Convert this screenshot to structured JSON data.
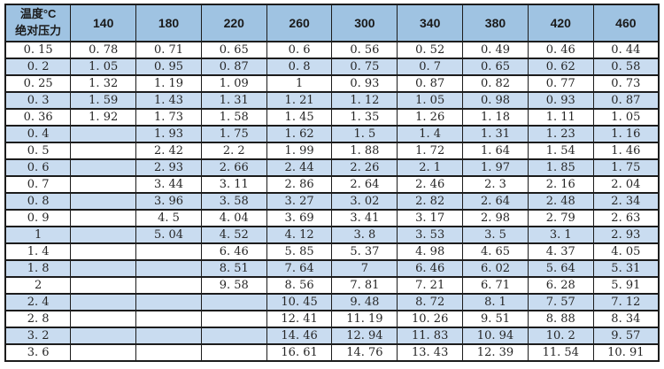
{
  "colors": {
    "header_bg": "#9fc3e2",
    "stripe_bg": "#c9dcf0",
    "row_bg": "#ffffff",
    "border": "#1c1c1c",
    "text": "#262626"
  },
  "chart_data": {
    "type": "table",
    "title": "",
    "corner_header": {
      "line1": "温度°C",
      "line2": "绝对压力"
    },
    "column_axis_label": "温度°C",
    "row_axis_label": "绝对压力",
    "columns": [
      "140",
      "180",
      "220",
      "260",
      "300",
      "340",
      "380",
      "420",
      "460"
    ],
    "rows": [
      {
        "label": "0.15",
        "values": [
          "0.78",
          "0.71",
          "0.65",
          "0.6",
          "0.56",
          "0.52",
          "0.49",
          "0.46",
          "0.44"
        ]
      },
      {
        "label": "0.2",
        "values": [
          "1.05",
          "0.95",
          "0.87",
          "0.8",
          "0.75",
          "0.7",
          "0.65",
          "0.62",
          "0.58"
        ]
      },
      {
        "label": "0.25",
        "values": [
          "1.32",
          "1.19",
          "1.09",
          "1",
          "0.93",
          "0.87",
          "0.82",
          "0.77",
          "0.73"
        ]
      },
      {
        "label": "0.3",
        "values": [
          "1.59",
          "1.43",
          "1.31",
          "1.21",
          "1.12",
          "1.05",
          "0.98",
          "0.93",
          "0.87"
        ]
      },
      {
        "label": "0.36",
        "values": [
          "1.92",
          "1.73",
          "1.58",
          "1.45",
          "1.35",
          "1.26",
          "1.18",
          "1.11",
          "1.05"
        ]
      },
      {
        "label": "0.4",
        "values": [
          "",
          "1.93",
          "1.75",
          "1.62",
          "1.5",
          "1.4",
          "1.31",
          "1.23",
          "1.16"
        ]
      },
      {
        "label": "0.5",
        "values": [
          "",
          "2.42",
          "2.2",
          "1.99",
          "1.88",
          "1.72",
          "1.64",
          "1.54",
          "1.46"
        ]
      },
      {
        "label": "0.6",
        "values": [
          "",
          "2.93",
          "2.66",
          "2.44",
          "2.26",
          "2.1",
          "1.97",
          "1.85",
          "1.75"
        ]
      },
      {
        "label": "0.7",
        "values": [
          "",
          "3.44",
          "3.11",
          "2.86",
          "2.64",
          "2.46",
          "2.3",
          "2.16",
          "2.04"
        ]
      },
      {
        "label": "0.8",
        "values": [
          "",
          "3.96",
          "3.58",
          "3.27",
          "3.02",
          "2.82",
          "2.64",
          "2.48",
          "2.34"
        ]
      },
      {
        "label": "0.9",
        "values": [
          "",
          "4.5",
          "4.04",
          "3.69",
          "3.41",
          "3.17",
          "2.98",
          "2.79",
          "2.63"
        ]
      },
      {
        "label": "1",
        "values": [
          "",
          "5.04",
          "4.52",
          "4.12",
          "3.8",
          "3.53",
          "3.5",
          "3.1",
          "2.93"
        ]
      },
      {
        "label": "1.4",
        "values": [
          "",
          "",
          "6.46",
          "5.85",
          "5.37",
          "4.98",
          "4.65",
          "4.37",
          "4.05"
        ]
      },
      {
        "label": "1.8",
        "values": [
          "",
          "",
          "8.51",
          "7.64",
          "7",
          "6.46",
          "6.02",
          "5.64",
          "5.31"
        ]
      },
      {
        "label": "2",
        "values": [
          "",
          "",
          "9.58",
          "8.56",
          "7.81",
          "7.21",
          "6.71",
          "6.28",
          "5.91"
        ]
      },
      {
        "label": "2.4",
        "values": [
          "",
          "",
          "",
          "10.45",
          "9.48",
          "8.72",
          "8.1",
          "7.57",
          "7.12"
        ]
      },
      {
        "label": "2.8",
        "values": [
          "",
          "",
          "",
          "12.41",
          "11.19",
          "10.26",
          "9.51",
          "8.88",
          "8.34"
        ]
      },
      {
        "label": "3.2",
        "values": [
          "",
          "",
          "",
          "14.46",
          "12.94",
          "11.83",
          "10.94",
          "10.2",
          "9.57"
        ]
      },
      {
        "label": "3.6",
        "values": [
          "",
          "",
          "",
          "16.61",
          "14.76",
          "13.43",
          "12.39",
          "11.54",
          "10.91"
        ]
      }
    ]
  }
}
